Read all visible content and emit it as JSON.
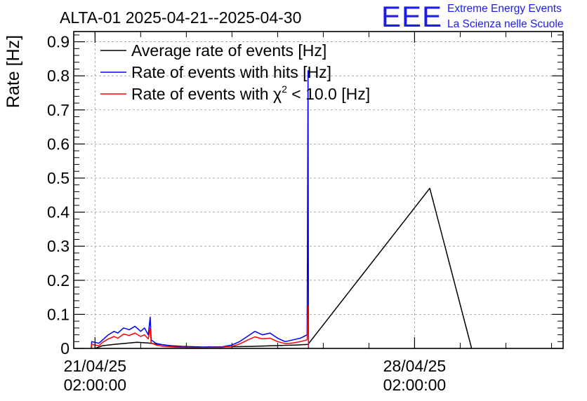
{
  "chart_data": {
    "type": "line",
    "title": "ALTA-01 2025-04-21--2025-04-30",
    "ylabel": "Rate [Hz]",
    "xlabel": "",
    "ylim": [
      0,
      0.93
    ],
    "xlim": [
      "2025-04-20 14:48:00",
      "2025-05-01 08:06:00"
    ],
    "grid": true,
    "legend_position": "top-left",
    "yticks": [
      "0",
      "0.1",
      "0.2",
      "0.3",
      "0.4",
      "0.5",
      "0.6",
      "0.7",
      "0.8",
      "0.9"
    ],
    "xticks": [
      {
        "x": "2025-04-21 02:00:00",
        "date": "21/04/25",
        "time": "02:00:00"
      },
      {
        "x": "2025-04-28 02:00:00",
        "date": "28/04/25",
        "time": "02:00:00"
      }
    ],
    "series": [
      {
        "name": "Average rate of events [Hz]",
        "color": "#000000",
        "points": [
          [
            "2025-04-21 02:00:00",
            0.0
          ],
          [
            "2025-04-21 06:00:00",
            0.008
          ],
          [
            "2025-04-21 12:00:00",
            0.012
          ],
          [
            "2025-04-21 18:00:00",
            0.015
          ],
          [
            "2025-04-22 00:00:00",
            0.018
          ],
          [
            "2025-04-22 06:00:00",
            0.016
          ],
          [
            "2025-04-22 12:00:00",
            0.012
          ],
          [
            "2025-04-22 18:00:00",
            0.008
          ],
          [
            "2025-04-23 00:00:00",
            0.006
          ],
          [
            "2025-04-23 12:00:00",
            0.004
          ],
          [
            "2025-04-24 00:00:00",
            0.005
          ],
          [
            "2025-04-24 12:00:00",
            0.006
          ],
          [
            "2025-04-25 00:00:00",
            0.008
          ],
          [
            "2025-04-25 12:00:00",
            0.01
          ],
          [
            "2025-04-25 18:00:00",
            0.012
          ],
          [
            "2025-04-28 10:00:00",
            0.47
          ],
          [
            "2025-04-29 08:00:00",
            0.0
          ]
        ]
      },
      {
        "name": "Rate of events with hits [Hz]",
        "color": "#0000ff",
        "points": [
          [
            "2025-04-21 00:00:00",
            0.0
          ],
          [
            "2025-04-21 00:15:00",
            0.02
          ],
          [
            "2025-04-21 02:00:00",
            0.018
          ],
          [
            "2025-04-21 04:00:00",
            0.015
          ],
          [
            "2025-04-21 06:00:00",
            0.025
          ],
          [
            "2025-04-21 09:00:00",
            0.04
          ],
          [
            "2025-04-21 12:00:00",
            0.05
          ],
          [
            "2025-04-21 14:00:00",
            0.045
          ],
          [
            "2025-04-21 17:00:00",
            0.06
          ],
          [
            "2025-04-21 20:00:00",
            0.055
          ],
          [
            "2025-04-21 23:00:00",
            0.065
          ],
          [
            "2025-04-22 02:00:00",
            0.05
          ],
          [
            "2025-04-22 04:00:00",
            0.06
          ],
          [
            "2025-04-22 06:00:00",
            0.04
          ],
          [
            "2025-04-22 07:00:00",
            0.092
          ],
          [
            "2025-04-22 07:30:00",
            0.025
          ],
          [
            "2025-04-22 10:00:00",
            0.015
          ],
          [
            "2025-04-22 14:00:00",
            0.01
          ],
          [
            "2025-04-22 20:00:00",
            0.006
          ],
          [
            "2025-04-23 02:00:00",
            0.004
          ],
          [
            "2025-04-23 08:00:00",
            0.003
          ],
          [
            "2025-04-23 14:00:00",
            0.005
          ],
          [
            "2025-04-23 20:00:00",
            0.004
          ],
          [
            "2025-04-24 02:00:00",
            0.01
          ],
          [
            "2025-04-24 06:00:00",
            0.02
          ],
          [
            "2025-04-24 10:00:00",
            0.035
          ],
          [
            "2025-04-24 14:00:00",
            0.05
          ],
          [
            "2025-04-24 18:00:00",
            0.04
          ],
          [
            "2025-04-24 22:00:00",
            0.045
          ],
          [
            "2025-04-25 02:00:00",
            0.03
          ],
          [
            "2025-04-25 06:00:00",
            0.02
          ],
          [
            "2025-04-25 10:00:00",
            0.025
          ],
          [
            "2025-04-25 14:00:00",
            0.03
          ],
          [
            "2025-04-25 17:30:00",
            0.04
          ],
          [
            "2025-04-25 18:00:00",
            0.815
          ],
          [
            "2025-04-25 18:15:00",
            0.0
          ]
        ]
      },
      {
        "name": "Rate of events with χ² < 10.0 [Hz]",
        "color": "#ff0000",
        "points": [
          [
            "2025-04-21 00:00:00",
            0.0
          ],
          [
            "2025-04-21 00:15:00",
            0.012
          ],
          [
            "2025-04-21 02:00:00",
            0.01
          ],
          [
            "2025-04-21 04:00:00",
            0.008
          ],
          [
            "2025-04-21 06:00:00",
            0.018
          ],
          [
            "2025-04-21 09:00:00",
            0.028
          ],
          [
            "2025-04-21 12:00:00",
            0.035
          ],
          [
            "2025-04-21 14:00:00",
            0.03
          ],
          [
            "2025-04-21 17:00:00",
            0.042
          ],
          [
            "2025-04-21 20:00:00",
            0.038
          ],
          [
            "2025-04-21 23:00:00",
            0.045
          ],
          [
            "2025-04-22 02:00:00",
            0.035
          ],
          [
            "2025-04-22 04:00:00",
            0.04
          ],
          [
            "2025-04-22 06:00:00",
            0.028
          ],
          [
            "2025-04-22 07:00:00",
            0.06
          ],
          [
            "2025-04-22 07:30:00",
            0.016
          ],
          [
            "2025-04-22 10:00:00",
            0.01
          ],
          [
            "2025-04-22 14:00:00",
            0.006
          ],
          [
            "2025-04-22 20:00:00",
            0.004
          ],
          [
            "2025-04-23 02:00:00",
            0.003
          ],
          [
            "2025-04-23 08:00:00",
            0.002
          ],
          [
            "2025-04-23 14:00:00",
            0.003
          ],
          [
            "2025-04-23 20:00:00",
            0.003
          ],
          [
            "2025-04-24 02:00:00",
            0.006
          ],
          [
            "2025-04-24 06:00:00",
            0.013
          ],
          [
            "2025-04-24 10:00:00",
            0.024
          ],
          [
            "2025-04-24 14:00:00",
            0.034
          ],
          [
            "2025-04-24 18:00:00",
            0.028
          ],
          [
            "2025-04-24 22:00:00",
            0.03
          ],
          [
            "2025-04-25 02:00:00",
            0.02
          ],
          [
            "2025-04-25 06:00:00",
            0.014
          ],
          [
            "2025-04-25 10:00:00",
            0.016
          ],
          [
            "2025-04-25 14:00:00",
            0.02
          ],
          [
            "2025-04-25 17:30:00",
            0.025
          ],
          [
            "2025-04-25 18:00:00",
            0.125
          ],
          [
            "2025-04-25 18:15:00",
            0.0
          ]
        ]
      }
    ]
  },
  "logo": {
    "mark": "EEE",
    "line1": "Extreme Energy Events",
    "line2": "La Scienza nelle Scuole"
  },
  "legend": {
    "items": [
      {
        "text": "Average rate of events [Hz]",
        "color": "#000000"
      },
      {
        "text": "Rate of events with hits [Hz]",
        "color": "#0000ff"
      },
      {
        "text_before": "Rate of events with χ",
        "superscript": "2",
        "text_after": " < 10.0 [Hz]",
        "color": "#ff0000"
      }
    ]
  }
}
